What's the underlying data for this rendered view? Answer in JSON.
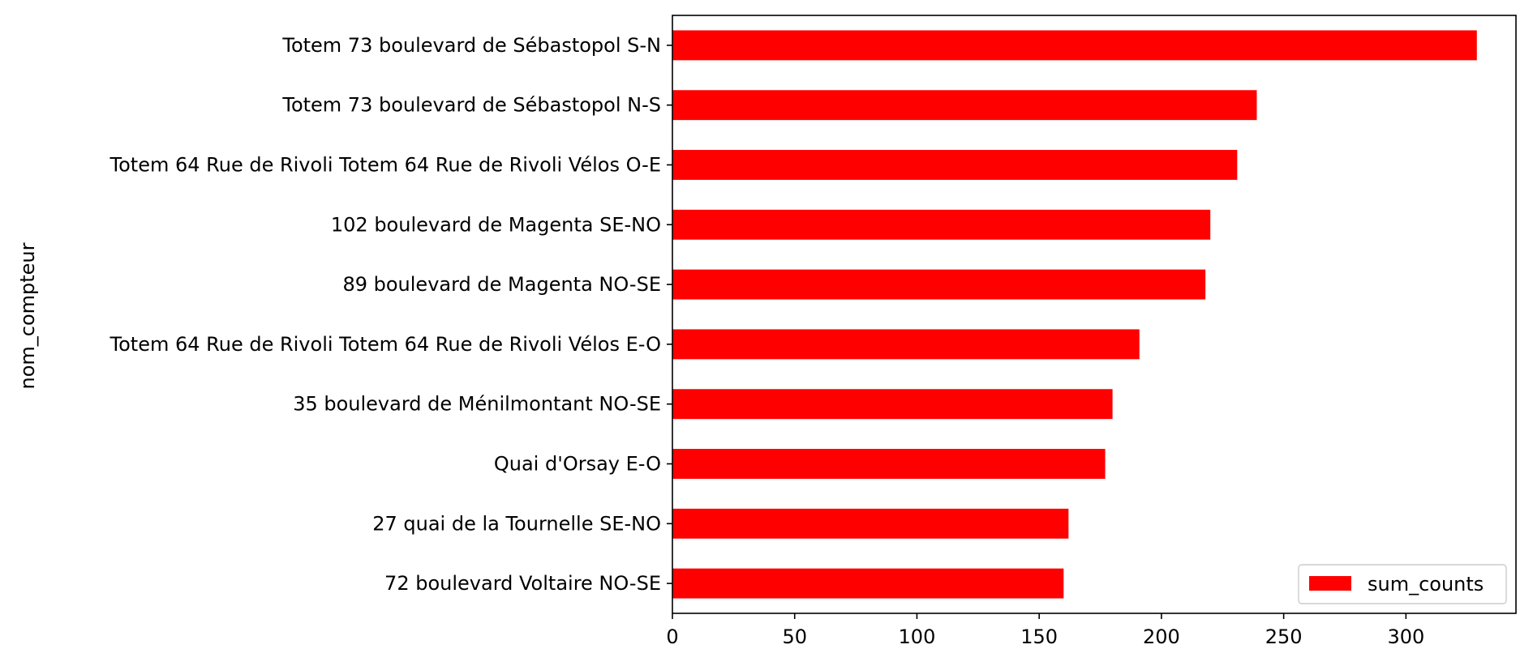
{
  "chart_data": {
    "type": "bar",
    "orientation": "horizontal",
    "title": "",
    "xlabel": "",
    "ylabel": "nom_compteur",
    "categories": [
      "Totem 73 boulevard de Sébastopol S-N",
      "Totem 73 boulevard de Sébastopol N-S",
      "Totem 64 Rue de Rivoli Totem 64 Rue de Rivoli Vélos O-E",
      "102 boulevard de Magenta SE-NO",
      "89 boulevard de Magenta NO-SE",
      "Totem 64 Rue de Rivoli Totem 64 Rue de Rivoli Vélos E-O",
      "35 boulevard de Ménilmontant NO-SE",
      "Quai d'Orsay E-O",
      "27 quai de la Tournelle SE-NO",
      "72 boulevard Voltaire NO-SE"
    ],
    "series": [
      {
        "name": "sum_counts",
        "color": "#ff0000",
        "values": [
          329,
          239,
          231,
          220,
          218,
          191,
          180,
          177,
          162,
          160
        ]
      }
    ],
    "xlim": [
      0,
      345
    ],
    "xticks": [
      0,
      50,
      100,
      150,
      200,
      250,
      300
    ],
    "grid": false,
    "legend_position": "lower-right"
  }
}
